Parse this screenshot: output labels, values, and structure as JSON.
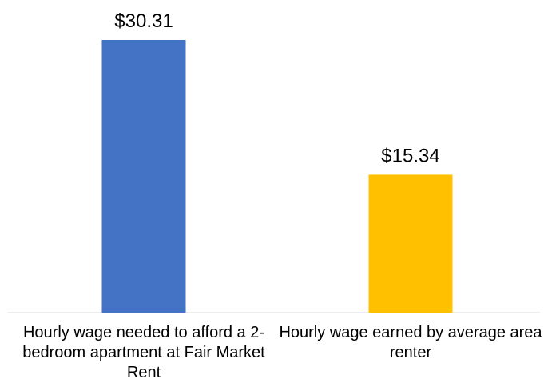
{
  "chart_data": {
    "type": "bar",
    "categories": [
      "Hourly wage needed to afford a 2-bedroom apartment at Fair Market Rent",
      "Hourly wage earned by average area renter"
    ],
    "values": [
      30.31,
      15.34
    ],
    "value_labels": [
      "$30.31",
      "$15.34"
    ],
    "colors": [
      "#4472c4",
      "#ffc000"
    ]
  }
}
